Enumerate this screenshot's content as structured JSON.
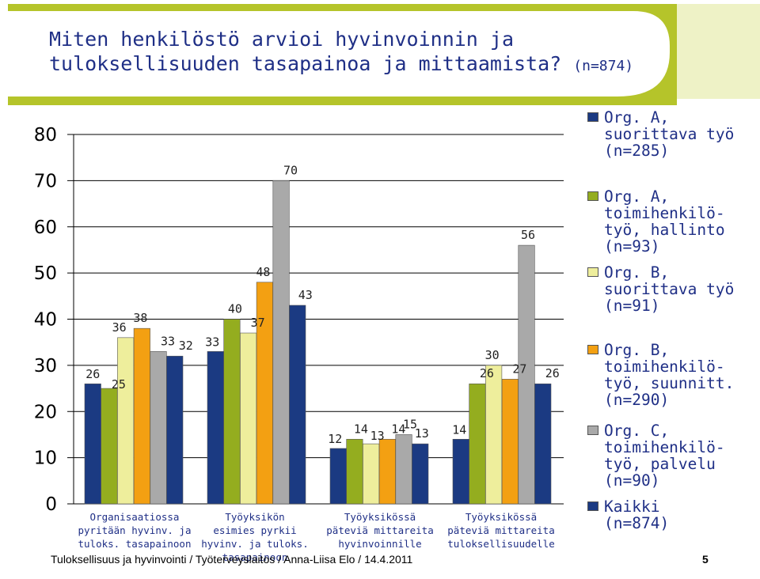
{
  "title": {
    "line1": "Miten henkilöstö arvioi hyvinvoinnin ja",
    "line2": "tuloksellisuuden tasapainoa ja mittaamista?",
    "sample": "(n=874)"
  },
  "colors": {
    "bg_green": "#b5c42a",
    "bg_light": "#eef2c6",
    "title_text": "#1f2f86"
  },
  "chart_data": {
    "type": "bar",
    "ylim": [
      0,
      80
    ],
    "yticks": [
      0,
      10,
      20,
      30,
      40,
      50,
      60,
      70,
      80
    ],
    "grid": true,
    "legend_position": "right",
    "categories": [
      [
        "Organisaatiossa",
        "pyritään hyvinv. ja",
        "tuloks. tasapainoon"
      ],
      [
        "Työyksikön",
        "esimies pyrkii",
        "hyvinv. ja tuloks.",
        "tasapainoon"
      ],
      [
        "Työyksikössä",
        "päteviä mittareita",
        "hyvinvoinnille"
      ],
      [
        "Työyksikössä",
        "päteviä mittareita",
        "tuloksellisuudelle"
      ]
    ],
    "series": [
      {
        "name": "Org. A, suorittava työ (n=285)",
        "color": "#1b3a82",
        "values": [
          26,
          33,
          12,
          14
        ]
      },
      {
        "name": "Org. A, toimihenkilö-työ, hallinto (n=93)",
        "color": "#94ad1f",
        "values": [
          25,
          40,
          14,
          26
        ]
      },
      {
        "name": "Org. B, suorittava työ (n=91)",
        "color": "#eeee9c",
        "values": [
          36,
          37,
          13,
          30
        ]
      },
      {
        "name": "Org. B, toimihenkilö-työ, suunnitt. (n=290)",
        "color": "#f3a012",
        "values": [
          38,
          48,
          14,
          27
        ]
      },
      {
        "name": "Org. C, toimihenkilö-työ, palvelu (n=90)",
        "color": "#a9a9a9",
        "values": [
          33,
          70,
          15,
          56
        ]
      },
      {
        "name": "Kaikki (n=874)",
        "color": "#1b3a82",
        "values": [
          32,
          43,
          13,
          26
        ]
      }
    ]
  },
  "legend": [
    {
      "lines": [
        "Org. A,",
        "suorittava työ",
        "(n=285)"
      ],
      "color": "#1b3a82"
    },
    {
      "lines": [
        "Org. A,",
        "toimihenkilö-",
        "työ, hallinto",
        "(n=93)"
      ],
      "color": "#94ad1f"
    },
    {
      "lines": [
        "Org. B,",
        "suorittava työ",
        "(n=91)"
      ],
      "color": "#eeee9c"
    },
    {
      "lines": [
        "Org. B,",
        "toimihenkilö-",
        "työ, suunnitt.",
        "(n=290)"
      ],
      "color": "#f3a012"
    },
    {
      "lines": [
        "Org. C,",
        "toimihenkilö-",
        "työ, palvelu",
        "(n=90)"
      ],
      "color": "#a9a9a9"
    },
    {
      "lines": [
        "Kaikki",
        "(n=874)"
      ],
      "color": "#1b3a82"
    }
  ],
  "footer": "Tuloksellisuus ja hyvinvointi / Työterveyslaitos / Anna-Liisa Elo / 14.4.2011",
  "page_number": "5"
}
